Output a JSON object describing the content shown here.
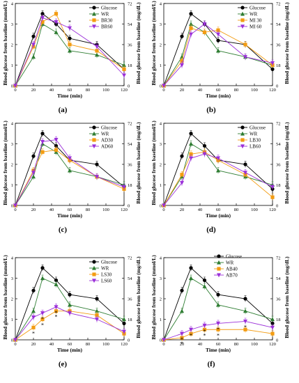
{
  "chart_data": [
    {
      "type": "line",
      "panel_label": "(a)",
      "x": [
        0,
        20,
        30,
        45,
        60,
        90,
        120
      ],
      "xlabel": "Time (min)",
      "ylabel": "Blood glucose from baseline (mmol/L)",
      "ylabel_right": "Blood glucose from baseline (mg/dL)",
      "xlim": [
        0,
        120
      ],
      "ylim": [
        0,
        4
      ],
      "xticks": [
        0,
        20,
        40,
        60,
        80,
        100,
        120
      ],
      "yticks": [
        0,
        1,
        2,
        3,
        4
      ],
      "yticks_right": [
        0,
        18,
        36,
        54,
        72
      ],
      "legend_position": "top-right",
      "series": [
        {
          "name": "Glucose",
          "color": "#000000",
          "marker": "circle",
          "values": [
            0,
            2.4,
            3.5,
            3.0,
            2.3,
            2.0,
            0.8
          ]
        },
        {
          "name": "WR",
          "color": "#2e7d32",
          "marker": "triangle-up",
          "values": [
            0,
            1.4,
            3.0,
            2.6,
            1.7,
            1.5,
            1.0
          ]
        },
        {
          "name": "BR30",
          "color": "#f39c12",
          "marker": "square",
          "values": [
            0,
            1.9,
            3.1,
            3.5,
            2.0,
            1.7,
            0.8
          ]
        },
        {
          "name": "BR60",
          "color": "#9b30d9",
          "marker": "triangle-down",
          "values": [
            0,
            2.0,
            3.3,
            3.1,
            2.8,
            1.9,
            0.5
          ]
        }
      ],
      "annotations": [
        {
          "text": "*",
          "x": 60,
          "series": "BR60"
        }
      ]
    },
    {
      "type": "line",
      "panel_label": "(b)",
      "x": [
        0,
        20,
        30,
        45,
        60,
        90,
        120
      ],
      "xlabel": "Time (min)",
      "ylabel": "Blood glucose from baseline (mmol/L)",
      "ylabel_right": "Blood glucose from baseline (mg/dL)",
      "xlim": [
        0,
        120
      ],
      "ylim": [
        0,
        4
      ],
      "xticks": [
        0,
        20,
        40,
        60,
        80,
        100,
        120
      ],
      "yticks": [
        0,
        1,
        2,
        3,
        4
      ],
      "yticks_right": [
        0,
        18,
        36,
        54,
        72
      ],
      "legend_position": "top-right",
      "series": [
        {
          "name": "Glucose",
          "color": "#000000",
          "marker": "circle",
          "values": [
            0,
            2.4,
            3.5,
            3.0,
            2.2,
            2.0,
            0.8
          ]
        },
        {
          "name": "WR",
          "color": "#2e7d32",
          "marker": "triangle-up",
          "values": [
            0,
            1.4,
            3.0,
            2.6,
            1.7,
            1.4,
            1.0
          ]
        },
        {
          "name": "MI 30",
          "color": "#f39c12",
          "marker": "square",
          "values": [
            0,
            1.2,
            2.8,
            2.6,
            2.7,
            2.0,
            1.0
          ]
        },
        {
          "name": "MI 60",
          "color": "#9b30d9",
          "marker": "triangle-down",
          "values": [
            0,
            1.0,
            2.5,
            3.0,
            2.5,
            1.4,
            1.1
          ]
        }
      ],
      "annotations": []
    },
    {
      "type": "line",
      "panel_label": "(c)",
      "x": [
        0,
        20,
        30,
        45,
        60,
        90,
        120
      ],
      "xlabel": "Time (min)",
      "ylabel": "Blood glucose from baseline (mmol/L)",
      "ylabel_right": "Blood glucose from baseline (mg/dL)",
      "xlim": [
        0,
        120
      ],
      "ylim": [
        0,
        4
      ],
      "xticks": [
        0,
        20,
        40,
        60,
        80,
        100,
        120
      ],
      "yticks": [
        0,
        1,
        2,
        3,
        4
      ],
      "yticks_right": [
        0,
        18,
        36,
        54,
        72
      ],
      "legend_position": "top-right",
      "series": [
        {
          "name": "Glucose",
          "color": "#000000",
          "marker": "circle",
          "values": [
            0,
            2.4,
            3.5,
            2.9,
            2.2,
            2.0,
            0.9
          ]
        },
        {
          "name": "WR",
          "color": "#2e7d32",
          "marker": "triangle-up",
          "values": [
            0,
            1.4,
            3.0,
            2.6,
            1.7,
            1.4,
            1.0
          ]
        },
        {
          "name": "AD30",
          "color": "#f39c12",
          "marker": "square",
          "values": [
            0,
            1.7,
            2.6,
            2.7,
            2.2,
            1.4,
            0.8
          ]
        },
        {
          "name": "AD60",
          "color": "#9b30d9",
          "marker": "triangle-down",
          "values": [
            0,
            1.6,
            3.1,
            3.2,
            2.3,
            1.4,
            0.9
          ]
        }
      ],
      "annotations": []
    },
    {
      "type": "line",
      "panel_label": "(d)",
      "x": [
        0,
        20,
        30,
        45,
        60,
        90,
        120
      ],
      "xlabel": "Time (min)",
      "ylabel": "Blood glucose from baseline (mmol/L)",
      "ylabel_right": "Blood glucose from baseline (mg/dL)",
      "xlim": [
        0,
        120
      ],
      "ylim": [
        0,
        4
      ],
      "xticks": [
        0,
        20,
        40,
        60,
        80,
        100,
        120
      ],
      "yticks": [
        0,
        1,
        2,
        3,
        4
      ],
      "yticks_right": [
        0,
        18,
        36,
        54,
        72
      ],
      "legend_position": "top-right",
      "series": [
        {
          "name": "Glucose",
          "color": "#000000",
          "marker": "circle",
          "values": [
            0,
            2.4,
            3.5,
            2.9,
            2.2,
            2.0,
            0.8
          ]
        },
        {
          "name": "WR",
          "color": "#2e7d32",
          "marker": "triangle-up",
          "values": [
            0,
            1.4,
            3.0,
            2.6,
            1.7,
            1.4,
            1.0
          ]
        },
        {
          "name": "LB30",
          "color": "#f39c12",
          "marker": "square",
          "values": [
            0,
            1.5,
            2.5,
            2.6,
            2.2,
            1.5,
            0.4
          ]
        },
        {
          "name": "LB60",
          "color": "#9b30d9",
          "marker": "triangle-down",
          "values": [
            0,
            1.1,
            2.3,
            2.5,
            2.3,
            1.6,
            0.9
          ]
        }
      ],
      "annotations": []
    },
    {
      "type": "line",
      "panel_label": "(e)",
      "x": [
        0,
        20,
        30,
        45,
        60,
        90,
        120
      ],
      "xlabel": "Time (min)",
      "ylabel": "Blood glucose from baseline (mmol/L)",
      "ylabel_right": "Blood glucose from baseline (mg/dL)",
      "xlim": [
        0,
        120
      ],
      "ylim": [
        0,
        4
      ],
      "xticks": [
        0,
        20,
        40,
        60,
        80,
        100,
        120
      ],
      "yticks": [
        0,
        1,
        2,
        3,
        4
      ],
      "yticks_right": [
        0,
        18,
        36,
        54,
        72
      ],
      "legend_position": "top-right",
      "series": [
        {
          "name": "Glucose",
          "color": "#000000",
          "marker": "circle",
          "values": [
            0,
            2.4,
            3.5,
            2.9,
            2.2,
            2.0,
            0.8
          ]
        },
        {
          "name": "WR",
          "color": "#2e7d32",
          "marker": "triangle-up",
          "values": [
            0,
            1.4,
            3.0,
            2.7,
            1.7,
            1.4,
            1.0
          ]
        },
        {
          "name": "LS30",
          "color": "#f39c12",
          "marker": "square",
          "values": [
            0,
            0.6,
            1.0,
            1.4,
            1.4,
            1.2,
            0.3
          ]
        },
        {
          "name": "LS60",
          "color": "#9b30d9",
          "marker": "triangle-down",
          "values": [
            0,
            1.1,
            1.3,
            1.6,
            1.3,
            1.0,
            0.4
          ]
        }
      ],
      "annotations": [
        {
          "text": "*",
          "x": 20,
          "series": "LS30"
        },
        {
          "text": "*",
          "x": 30,
          "series": "LS60"
        },
        {
          "text": "*",
          "x": 30,
          "series": "LS30"
        },
        {
          "text": "*",
          "x": 45,
          "series": "LS60"
        },
        {
          "text": "*",
          "x": 45,
          "series": "LS30"
        }
      ]
    },
    {
      "type": "line",
      "panel_label": "(f)",
      "x": [
        0,
        20,
        30,
        45,
        60,
        90,
        120
      ],
      "xlabel": "Time (min)",
      "ylabel": "Blood glucose from baseline (mmol/L)",
      "ylabel_right": "Blood glucose from baseline (mg/dL)",
      "xlim": [
        0,
        120
      ],
      "ylim": [
        0,
        4
      ],
      "xticks": [
        0,
        20,
        40,
        60,
        80,
        100,
        120
      ],
      "yticks": [
        0,
        1,
        2,
        3,
        4
      ],
      "yticks_right": [
        0,
        18,
        36,
        54,
        72
      ],
      "legend_position": "top-left",
      "series": [
        {
          "name": "Glucose",
          "color": "#000000",
          "marker": "circle",
          "values": [
            0,
            2.4,
            3.5,
            2.9,
            2.2,
            2.0,
            0.8
          ]
        },
        {
          "name": "WR",
          "color": "#2e7d32",
          "marker": "triangle-up",
          "values": [
            0,
            1.4,
            3.0,
            2.6,
            1.7,
            1.4,
            1.0
          ]
        },
        {
          "name": "AB40",
          "color": "#f39c12",
          "marker": "square",
          "values": [
            0,
            0.1,
            0.3,
            0.5,
            0.5,
            0.5,
            0.3
          ]
        },
        {
          "name": "AB70",
          "color": "#9b30d9",
          "marker": "triangle-down",
          "values": [
            0,
            0.3,
            0.5,
            0.7,
            0.8,
            0.9,
            0.6
          ]
        }
      ],
      "annotations": [
        {
          "text": "*",
          "x": 20,
          "series": "AB70"
        },
        {
          "text": "*",
          "x": 20,
          "series": "AB40"
        },
        {
          "text": "*",
          "x": 30,
          "series": "AB70"
        },
        {
          "text": "*",
          "x": 45,
          "series": "AB70"
        },
        {
          "text": "*",
          "x": 45,
          "series": "AB40"
        },
        {
          "text": "*",
          "x": 60,
          "series": "AB70"
        },
        {
          "text": "*",
          "x": 60,
          "series": "AB40"
        },
        {
          "text": "*",
          "x": 90,
          "series": "AB70"
        }
      ]
    }
  ]
}
